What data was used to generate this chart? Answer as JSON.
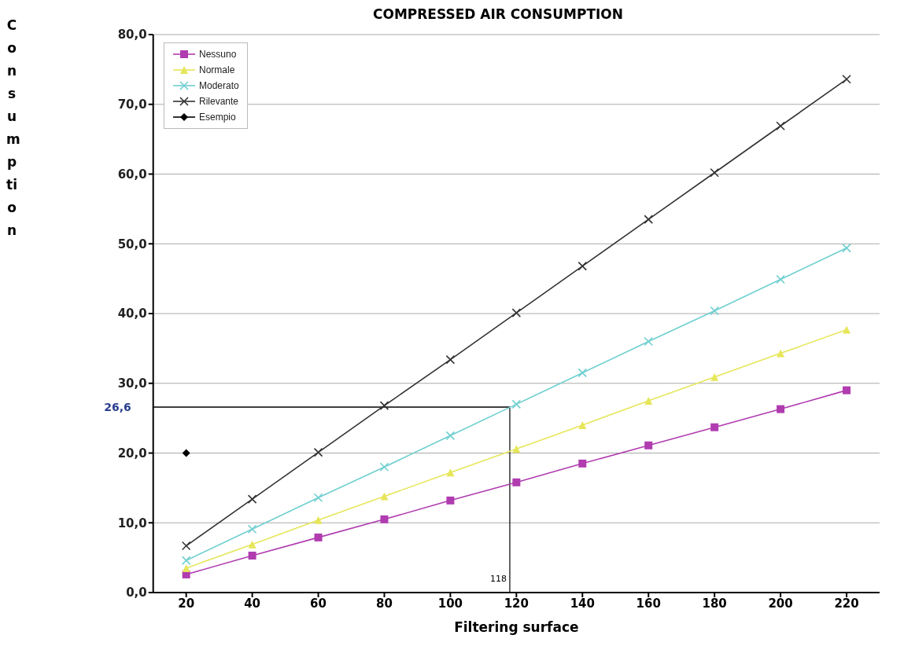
{
  "chart_data": {
    "type": "line",
    "title": "COMPRESSED AIR CONSUMPTION",
    "xlabel": "Filtering surface",
    "ylabel": "Consumption",
    "x": [
      20,
      40,
      60,
      80,
      100,
      120,
      140,
      160,
      180,
      200,
      220
    ],
    "series": [
      {
        "name": "Nessuno",
        "color": "#b03cb0",
        "marker": "square",
        "values": [
          2.6,
          5.3,
          7.9,
          10.5,
          13.2,
          15.8,
          18.5,
          21.1,
          23.7,
          26.3,
          29.0
        ]
      },
      {
        "name": "Normale",
        "color": "#e6e65a",
        "marker": "triangle",
        "values": [
          3.5,
          6.9,
          10.4,
          13.8,
          17.2,
          20.6,
          24.0,
          27.5,
          30.9,
          34.3,
          37.7
        ]
      },
      {
        "name": "Moderato",
        "color": "#6fcfd0",
        "marker": "cross",
        "values": [
          4.6,
          9.1,
          13.6,
          18.0,
          22.5,
          27.0,
          31.5,
          36.0,
          40.4,
          44.9,
          49.4
        ]
      },
      {
        "name": "Rilevante",
        "color": "#333333",
        "marker": "cross",
        "values": [
          6.7,
          13.4,
          20.1,
          26.8,
          33.4,
          40.1,
          46.8,
          53.5,
          60.2,
          66.9,
          73.6
        ]
      },
      {
        "name": "Esempio",
        "color": "#000000",
        "marker": "diamond",
        "x": [
          20
        ],
        "values": [
          20.0
        ]
      }
    ],
    "xlim": [
      10,
      230
    ],
    "xticks": [
      20,
      40,
      60,
      80,
      100,
      120,
      140,
      160,
      180,
      200,
      220
    ],
    "ylim": [
      0,
      80
    ],
    "yticks": [
      {
        "value": 0,
        "label": "0,0"
      },
      {
        "value": 10,
        "label": "10,0"
      },
      {
        "value": 20,
        "label": "20,0"
      },
      {
        "value": 30,
        "label": "30,0"
      },
      {
        "value": 40,
        "label": "40,0"
      },
      {
        "value": 50,
        "label": "50,0"
      },
      {
        "value": 60,
        "label": "60,0"
      },
      {
        "value": 70,
        "label": "70,0"
      },
      {
        "value": 80,
        "label": "80,0"
      }
    ],
    "ref_lines": [
      {
        "axis": "y",
        "value": 26.6,
        "label": "26,6",
        "color": "#000000"
      },
      {
        "axis": "x",
        "value": 118,
        "label": "118",
        "color": "#000000"
      }
    ],
    "grid": "y",
    "legend": "top left"
  }
}
